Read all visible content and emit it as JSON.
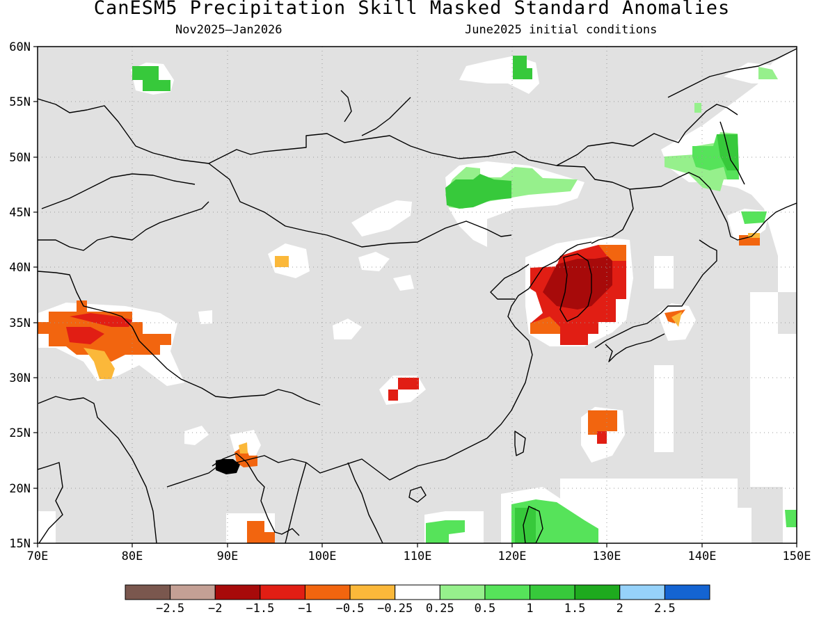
{
  "title": "CanESM5 Precipitation Skill Masked Standard Anomalies",
  "subtitle_left": "Nov2025–Jan2026",
  "subtitle_right": "June2025 initial conditions",
  "lat_labels": [
    "60N",
    "55N",
    "50N",
    "45N",
    "40N",
    "35N",
    "30N",
    "25N",
    "20N",
    "15N"
  ],
  "lon_labels": [
    "70E",
    "80E",
    "90E",
    "100E",
    "110E",
    "120E",
    "130E",
    "140E",
    "150E"
  ],
  "colorbar": {
    "colors": [
      "#7a574e",
      "#c4a095",
      "#a70a0a",
      "#e11e14",
      "#f2650f",
      "#fbb83a",
      "#ffffff",
      "#96f08c",
      "#56e35a",
      "#37c93b",
      "#1eaa1e",
      "#96d2fa",
      "#1464d2"
    ],
    "labels": [
      "−2.5",
      "−2",
      "−1.5",
      "−1",
      "−0.5",
      "−0.25",
      "0.25",
      "0.5",
      "1",
      "1.5",
      "2",
      "2.5"
    ]
  },
  "map_colors": {
    "masked": "#e1e1e1",
    "unmasked": "#ffffff"
  }
}
